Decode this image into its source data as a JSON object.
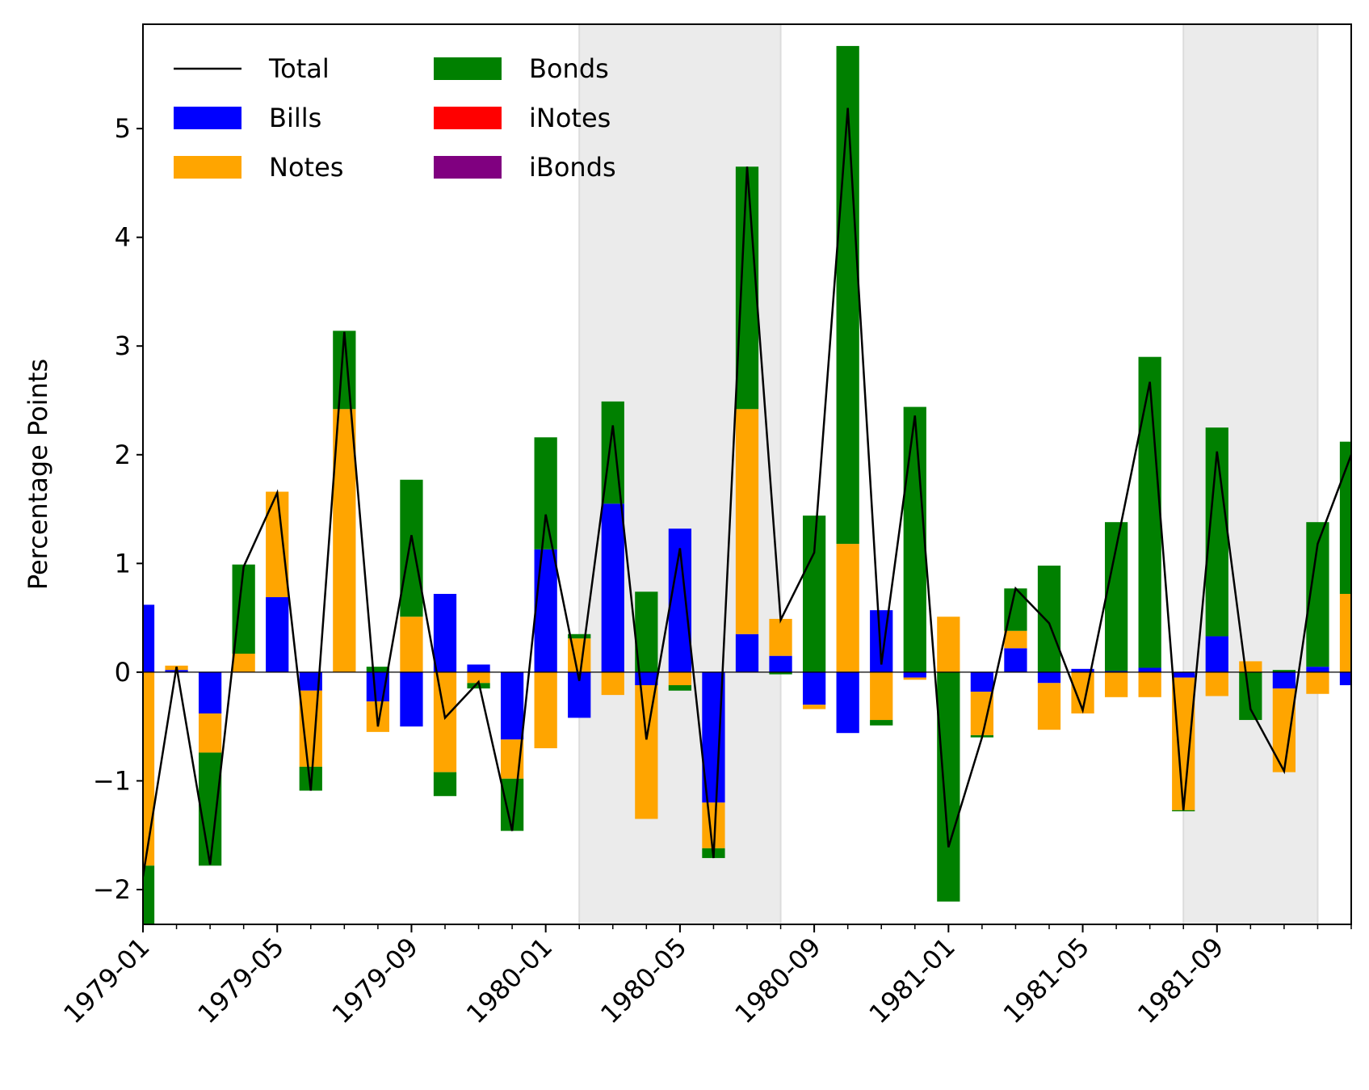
{
  "chart_data": {
    "type": "bar",
    "ylabel": "Percentage Points",
    "x": [
      "1979-01",
      "1979-02",
      "1979-03",
      "1979-04",
      "1979-05",
      "1979-06",
      "1979-07",
      "1979-08",
      "1979-09",
      "1979-10",
      "1979-11",
      "1979-12",
      "1980-01",
      "1980-02",
      "1980-03",
      "1980-04",
      "1980-05",
      "1980-06",
      "1980-07",
      "1980-08",
      "1980-09",
      "1980-10",
      "1980-11",
      "1980-12",
      "1981-01",
      "1981-02",
      "1981-03",
      "1981-04",
      "1981-05",
      "1981-06",
      "1981-07",
      "1981-08",
      "1981-09",
      "1981-10",
      "1981-11",
      "1981-12",
      "1982-01"
    ],
    "series": [
      {
        "name": "Total",
        "type": "line",
        "color": "#000000",
        "values": [
          -1.88,
          0.05,
          -1.77,
          0.97,
          1.65,
          -1.09,
          3.13,
          -0.5,
          1.26,
          -0.42,
          -0.09,
          -1.46,
          1.45,
          -0.08,
          2.27,
          -0.62,
          1.14,
          -1.71,
          4.65,
          0.48,
          1.1,
          5.19,
          0.07,
          2.36,
          -1.61,
          -0.6,
          0.77,
          0.45,
          -0.35,
          1.15,
          2.67,
          -1.27,
          2.03,
          -0.34,
          -0.91,
          1.18,
          2.0
        ]
      },
      {
        "name": "Bills",
        "color": "#0000ff",
        "values": [
          0.62,
          0.02,
          -0.38,
          0,
          0.69,
          -0.17,
          0,
          -0.27,
          -0.5,
          0.72,
          0.07,
          -0.62,
          1.13,
          -0.42,
          1.55,
          -0.12,
          1.32,
          -1.2,
          0.35,
          0.15,
          -0.3,
          -0.56,
          0.57,
          -0.05,
          0,
          -0.18,
          0.22,
          -0.1,
          0.03,
          0.01,
          0.04,
          -0.05,
          0.33,
          0,
          -0.15,
          0.05,
          -0.12
        ]
      },
      {
        "name": "Notes",
        "color": "#ffa500",
        "values": [
          -1.78,
          0.04,
          -0.36,
          0.17,
          0.97,
          -0.7,
          2.42,
          -0.28,
          0.51,
          -0.92,
          -0.1,
          -0.36,
          -0.7,
          0.31,
          -0.21,
          -1.23,
          -0.12,
          -0.42,
          2.07,
          0.34,
          -0.04,
          1.18,
          -0.44,
          -0.02,
          0.51,
          -0.4,
          0.16,
          -0.43,
          -0.38,
          -0.23,
          -0.23,
          -1.22,
          -0.22,
          0.1,
          -0.77,
          -0.2,
          0.72
        ]
      },
      {
        "name": "Bonds",
        "color": "#008000",
        "values": [
          -0.55,
          0,
          -1.04,
          0.82,
          0,
          -0.22,
          0.72,
          0.05,
          1.26,
          -0.22,
          -0.05,
          -0.48,
          1.03,
          0.04,
          0.94,
          0.74,
          -0.05,
          -0.09,
          2.23,
          -0.02,
          1.44,
          4.58,
          -0.05,
          2.44,
          -2.11,
          -0.02,
          0.39,
          0.98,
          0,
          1.37,
          2.86,
          -0.01,
          1.92,
          -0.44,
          0.02,
          1.33,
          1.4
        ]
      },
      {
        "name": "iNotes",
        "color": "#ff0000",
        "values": [
          0,
          0,
          0,
          0,
          0,
          0,
          0,
          0,
          0,
          0,
          0,
          0,
          0,
          0,
          0,
          0,
          0,
          0,
          0,
          0,
          0,
          0,
          0,
          0,
          0,
          0,
          0,
          0,
          0,
          0,
          0,
          0,
          0,
          0,
          0,
          0,
          0
        ]
      },
      {
        "name": "iBonds",
        "color": "#800080",
        "values": [
          0,
          0,
          0,
          0,
          0,
          0,
          0,
          0,
          0,
          0,
          0,
          0,
          0,
          0,
          0,
          0,
          0,
          0,
          0,
          0,
          0,
          0,
          0,
          0,
          0,
          0,
          0,
          0,
          0,
          0,
          0,
          0,
          0,
          0,
          0,
          0,
          0
        ]
      }
    ],
    "shaded": [
      [
        "1980-02",
        "1980-08"
      ],
      [
        "1981-08",
        "1981-12"
      ]
    ],
    "shade_color": "#ebebeb",
    "hline": 0,
    "xlim": [
      "1979-01",
      "1982-01"
    ],
    "xticks": [
      "1979-01",
      "1979-05",
      "1979-09",
      "1980-01",
      "1980-05",
      "1980-09",
      "1981-01",
      "1981-05",
      "1981-09"
    ],
    "ylim": [
      -2.32,
      5.96
    ],
    "yticks": [
      {
        "value": -2,
        "label": "−2"
      },
      {
        "value": -1,
        "label": "−1"
      },
      0,
      1,
      2,
      3,
      4,
      5
    ],
    "legend": "upper left"
  }
}
